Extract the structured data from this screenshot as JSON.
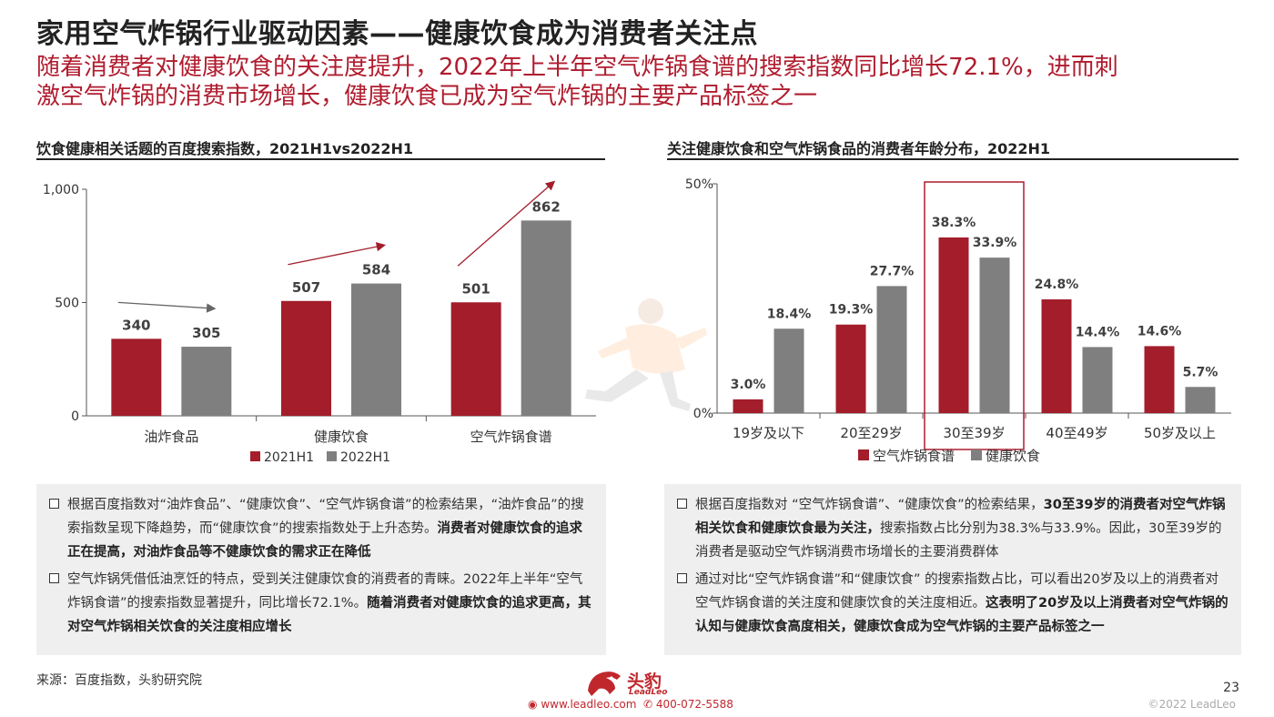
{
  "header": {
    "title": "家用空气炸锅行业驱动因素——健康饮食成为消费者关注点",
    "subtitle_line1": "随着消费者对健康饮食的关注度提升，2022年上半年空气炸锅食谱的搜索指数同比增长72.1%，进而刺",
    "subtitle_line2": "激空气炸锅的消费市场增长，健康饮食已成为空气炸锅的主要产品标签之一"
  },
  "colors": {
    "red": "#a31d2b",
    "gray": "#7f7f7f",
    "accent": "#b01c2e"
  },
  "left": {
    "section_title": "饮食健康相关话题的百度搜索指数，2021H1vs2022H1",
    "notes": [
      {
        "text": "根据百度指数对“油炸食品”、“健康饮食”、“空气炸锅食谱”的检索结果，“油炸食品”的搜索指数呈现下降趋势，而“健康饮食”的搜索指数处于上升态势。",
        "bold": "消费者对健康饮食的追求正在提高，对油炸食品等不健康饮食的需求正在降低",
        "after": ""
      },
      {
        "text": "空气炸锅凭借低油烹饪的特点，受到关注健康饮食的消费者的青睐。2022年上半年“空气炸锅食谱”的搜索指数显著提升，同比增长72.1%。",
        "bold": "随着消费者对健康饮食的追求更高，其对空气炸锅相关饮食的关注度相应增长",
        "after": ""
      }
    ]
  },
  "right": {
    "section_title": "关注健康饮食和空气炸锅食品的消费者年龄分布，2022H1",
    "notes": [
      {
        "text": "根据百度指数对 “空气炸锅食谱”、“健康饮食”的检索结果，",
        "bold": "30至39岁的消费者对空气炸锅相关饮食和健康饮食最为关注，",
        "after": "搜索指数占比分别为38.3%与33.9%。因此，30至39岁的消费者是驱动空气炸锅消费市场增长的主要消费群体"
      },
      {
        "text": "通过对比“空气炸锅食谱”和“健康饮食” 的搜索指数占比，可以看出20岁及以上的消费者对空气炸锅食谱的关注度和健康饮食的关注度相近。",
        "bold": "这表明了20岁及以上消费者对空气炸锅的认知与健康饮食高度相关，健康饮食成为空气炸锅的主要产品标签之一",
        "after": ""
      }
    ]
  },
  "chart_data": [
    {
      "type": "bar",
      "title": "饮食健康相关话题的百度搜索指数，2021H1vs2022H1",
      "categories": [
        "油炸食品",
        "健康饮食",
        "空气炸锅食谱"
      ],
      "series": [
        {
          "name": "2021H1",
          "values": [
            340,
            507,
            501
          ],
          "labels": [
            "340",
            "507",
            "501"
          ]
        },
        {
          "name": "2022H1",
          "values": [
            305,
            584,
            862
          ],
          "labels": [
            "305",
            "584",
            "862"
          ]
        }
      ],
      "ylim": [
        0,
        1000
      ],
      "yticks": [
        0,
        500,
        1000
      ],
      "ytick_labels": [
        "0",
        "500",
        "1,000"
      ],
      "legend": "bottom"
    },
    {
      "type": "bar",
      "title": "关注健康饮食和空气炸锅食品的消费者年龄分布，2022H1",
      "categories": [
        "19岁及以下",
        "20至29岁",
        "30至39岁",
        "40至49岁",
        "50岁及以上"
      ],
      "series": [
        {
          "name": "空气炸锅食谱",
          "values": [
            3.0,
            19.3,
            38.3,
            24.8,
            14.6
          ],
          "labels": [
            "3.0%",
            "19.3%",
            "38.3%",
            "24.8%",
            "14.6%"
          ]
        },
        {
          "name": "健康饮食",
          "values": [
            18.4,
            27.7,
            33.9,
            14.4,
            5.7
          ],
          "labels": [
            "18.4%",
            "27.7%",
            "33.9%",
            "14.4%",
            "5.7%"
          ]
        }
      ],
      "ylim": [
        0,
        50
      ],
      "yticks": [
        0,
        50
      ],
      "ytick_labels": [
        "0%",
        "50%"
      ],
      "highlight_category": "30至39岁",
      "legend": "bottom"
    }
  ],
  "footer": {
    "source": "来源：百度指数，头豹研究院",
    "page": "23",
    "copyright": "©2022 LeadLeo",
    "logo_text": "头豹",
    "logo_sub": "LeadLeo",
    "website": "www.leadleo.com",
    "phone": "400-072-5588"
  }
}
